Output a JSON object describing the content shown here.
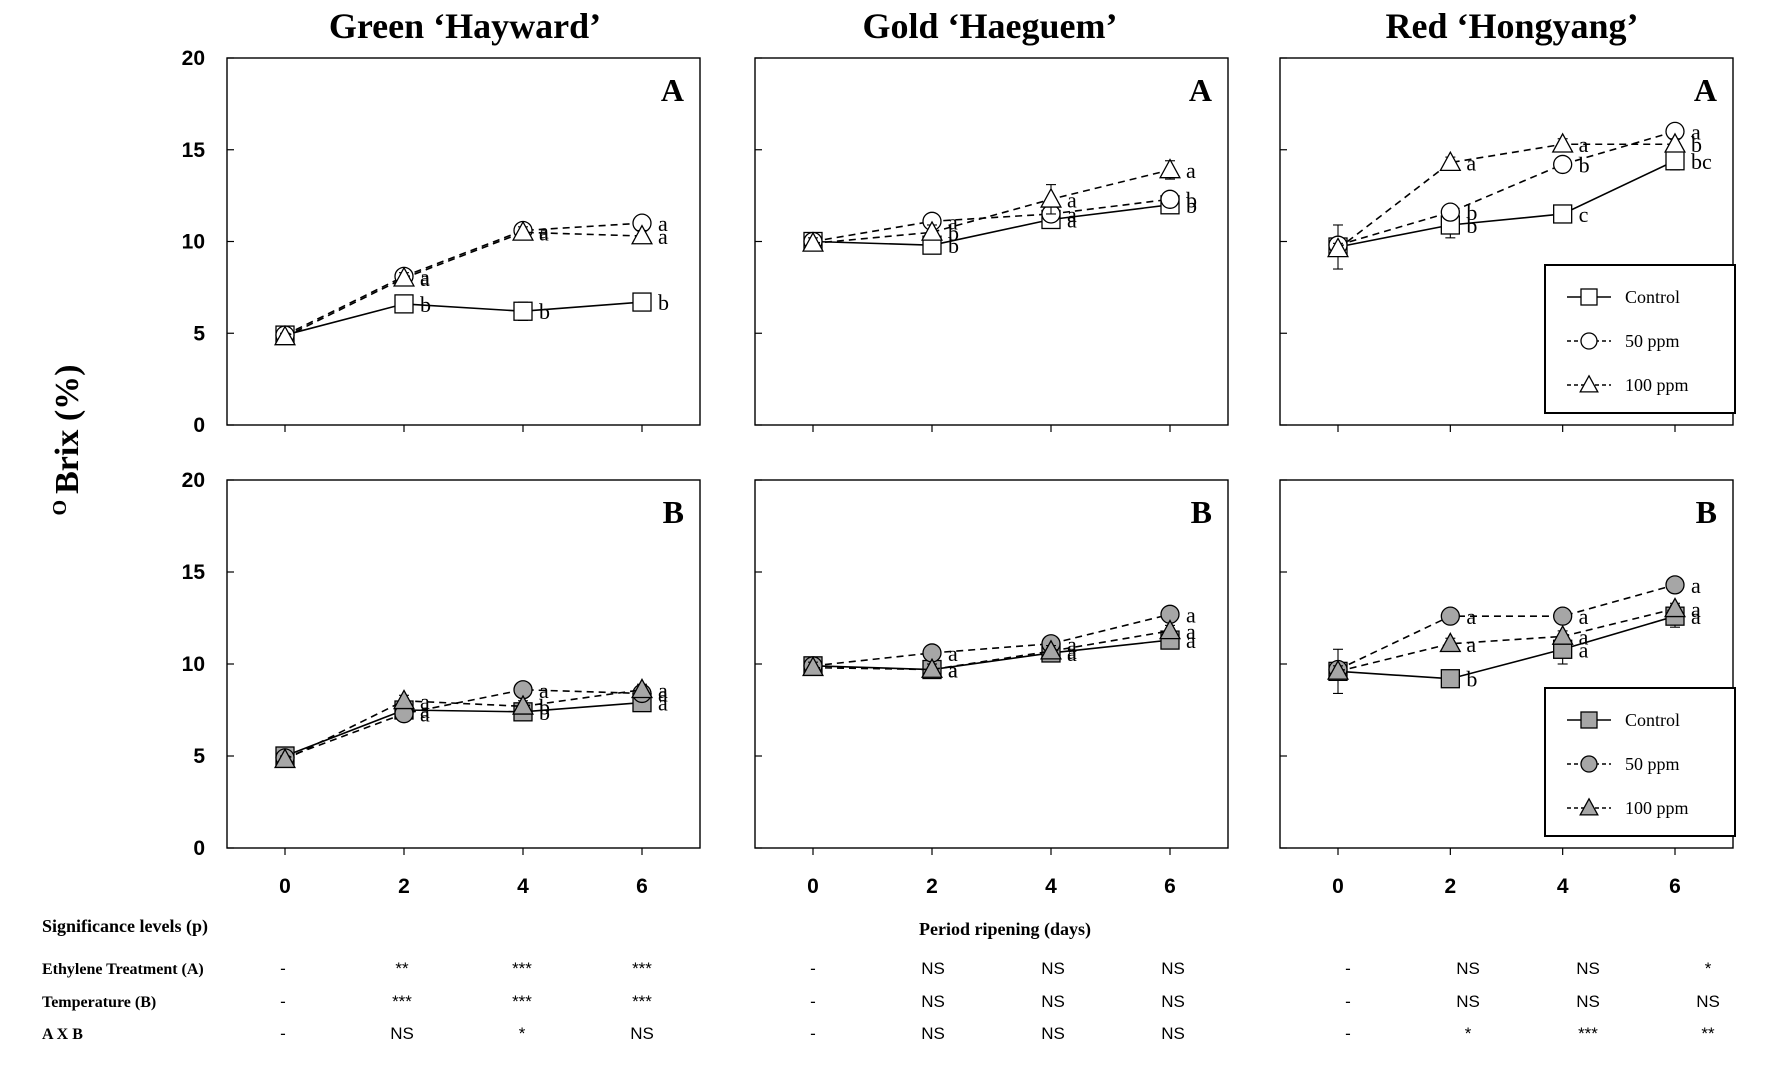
{
  "figure": {
    "ylabel_super": "O",
    "ylabel": "Brix (%)",
    "xlabel": "Period ripening (days)",
    "columns": [
      "Green ‘Hayward’",
      "Gold ‘Haeguem’",
      "Red ‘Hongyang’"
    ],
    "row_tags": [
      "A",
      "B"
    ],
    "legend_labels": [
      "Control",
      "50 ppm",
      "100 ppm"
    ]
  },
  "chart_data": [
    {
      "type": "line",
      "cultivar": "Green ‘Hayward’",
      "panel": "A",
      "fill": "white",
      "x": [
        0,
        2,
        4,
        6
      ],
      "ylim": [
        0,
        20
      ],
      "yticks": [
        0,
        5,
        10,
        15,
        20
      ],
      "series": [
        {
          "name": "Control",
          "marker": "square",
          "values": [
            4.9,
            6.6,
            6.2,
            6.7
          ],
          "err": [
            0.3,
            0.4,
            0.5,
            0.3
          ],
          "letters": [
            "",
            "b",
            "b",
            "b"
          ]
        },
        {
          "name": "50 ppm",
          "marker": "circle",
          "values": [
            4.9,
            8.1,
            10.6,
            11.0
          ],
          "err": [
            0.2,
            0.3,
            0.3,
            0.3
          ],
          "letters": [
            "",
            "a",
            "a",
            "a"
          ]
        },
        {
          "name": "100 ppm",
          "marker": "triangle",
          "values": [
            4.8,
            8.0,
            10.5,
            10.3
          ],
          "err": [
            0.2,
            0.3,
            0.3,
            0.3
          ],
          "letters": [
            "",
            "a",
            "a",
            "a"
          ]
        }
      ]
    },
    {
      "type": "line",
      "cultivar": "Gold ‘Haeguem’",
      "panel": "A",
      "fill": "white",
      "x": [
        0,
        2,
        4,
        6
      ],
      "ylim": [
        0,
        20
      ],
      "yticks": [
        0,
        5,
        10,
        15,
        20
      ],
      "series": [
        {
          "name": "Control",
          "marker": "square",
          "values": [
            10.0,
            9.8,
            11.2,
            12.0
          ],
          "err": [
            0.3,
            0.3,
            0.3,
            0.3
          ],
          "letters": [
            "",
            "b",
            "a",
            "b"
          ]
        },
        {
          "name": "50 ppm",
          "marker": "circle",
          "values": [
            10.0,
            11.1,
            11.5,
            12.3
          ],
          "err": [
            0.3,
            0.3,
            0.3,
            0.3
          ],
          "letters": [
            "",
            "a",
            "a",
            "b"
          ]
        },
        {
          "name": "100 ppm",
          "marker": "triangle",
          "values": [
            9.9,
            10.5,
            12.3,
            13.9
          ],
          "err": [
            0.3,
            0.4,
            0.8,
            0.5
          ],
          "letters": [
            "",
            "b",
            "a",
            "a"
          ]
        }
      ]
    },
    {
      "type": "line",
      "cultivar": "Red ‘Hongyang’",
      "panel": "A",
      "fill": "white",
      "x": [
        0,
        2,
        4,
        6
      ],
      "ylim": [
        0,
        20
      ],
      "yticks": [
        0,
        5,
        10,
        15,
        20
      ],
      "legend": "lower-right",
      "series": [
        {
          "name": "Control",
          "marker": "square",
          "values": [
            9.7,
            10.9,
            11.5,
            14.4
          ],
          "err": [
            1.2,
            0.7,
            0.3,
            0.5
          ],
          "letters": [
            "",
            "b",
            "c",
            "bc"
          ]
        },
        {
          "name": "50 ppm",
          "marker": "circle",
          "values": [
            9.8,
            11.6,
            14.2,
            16.0
          ],
          "err": [
            0.3,
            0.3,
            0.3,
            0.3
          ],
          "letters": [
            "",
            "b",
            "b",
            "a"
          ]
        },
        {
          "name": "100 ppm",
          "marker": "triangle",
          "values": [
            9.6,
            14.3,
            15.3,
            15.3
          ],
          "err": [
            0.3,
            0.3,
            0.3,
            0.3
          ],
          "letters": [
            "",
            "a",
            "a",
            "b"
          ]
        }
      ]
    },
    {
      "type": "line",
      "cultivar": "Green ‘Hayward’",
      "panel": "B",
      "fill": "gray",
      "x": [
        0,
        2,
        4,
        6
      ],
      "ylim": [
        0,
        20
      ],
      "yticks": [
        0,
        5,
        10,
        15,
        20
      ],
      "series": [
        {
          "name": "Control",
          "marker": "square",
          "values": [
            5.0,
            7.5,
            7.4,
            7.9
          ],
          "err": [
            0.2,
            0.3,
            0.3,
            0.3
          ],
          "letters": [
            "",
            "a",
            "b",
            "a"
          ]
        },
        {
          "name": "50 ppm",
          "marker": "circle",
          "values": [
            4.9,
            7.3,
            8.6,
            8.4
          ],
          "err": [
            0.2,
            0.3,
            0.3,
            0.3
          ],
          "letters": [
            "",
            "a",
            "a",
            "a"
          ]
        },
        {
          "name": "100 ppm",
          "marker": "triangle",
          "values": [
            4.8,
            8.0,
            7.7,
            8.6
          ],
          "err": [
            0.2,
            0.3,
            0.3,
            0.3
          ],
          "letters": [
            "",
            "a",
            "b",
            "a"
          ]
        }
      ]
    },
    {
      "type": "line",
      "cultivar": "Gold ‘Haeguem’",
      "panel": "B",
      "fill": "gray",
      "x": [
        0,
        2,
        4,
        6
      ],
      "ylim": [
        0,
        20
      ],
      "yticks": [
        0,
        5,
        10,
        15,
        20
      ],
      "series": [
        {
          "name": "Control",
          "marker": "square",
          "values": [
            9.9,
            9.7,
            10.6,
            11.3
          ],
          "err": [
            0.3,
            0.3,
            0.3,
            0.3
          ],
          "letters": [
            "",
            "a",
            "a",
            "a"
          ]
        },
        {
          "name": "50 ppm",
          "marker": "circle",
          "values": [
            9.9,
            10.6,
            11.1,
            12.7
          ],
          "err": [
            0.3,
            0.3,
            0.3,
            0.3
          ],
          "letters": [
            "",
            "a",
            "a",
            "a"
          ]
        },
        {
          "name": "100 ppm",
          "marker": "triangle",
          "values": [
            9.8,
            9.7,
            10.7,
            11.8
          ],
          "err": [
            0.3,
            0.3,
            0.3,
            0.3
          ],
          "letters": [
            "",
            "a",
            "a",
            "a"
          ]
        }
      ]
    },
    {
      "type": "line",
      "cultivar": "Red ‘Hongyang’",
      "panel": "B",
      "fill": "gray",
      "x": [
        0,
        2,
        4,
        6
      ],
      "ylim": [
        0,
        20
      ],
      "yticks": [
        0,
        5,
        10,
        15,
        20
      ],
      "legend": "lower-right",
      "series": [
        {
          "name": "Control",
          "marker": "square",
          "values": [
            9.6,
            9.2,
            10.8,
            12.6
          ],
          "err": [
            1.2,
            0.3,
            0.8,
            0.6
          ],
          "letters": [
            "",
            "b",
            "a",
            "a"
          ]
        },
        {
          "name": "50 ppm",
          "marker": "circle",
          "values": [
            9.7,
            12.6,
            12.6,
            14.3
          ],
          "err": [
            0.3,
            0.3,
            0.3,
            0.3
          ],
          "letters": [
            "",
            "a",
            "a",
            "a"
          ]
        },
        {
          "name": "100 ppm",
          "marker": "triangle",
          "values": [
            9.6,
            11.1,
            11.5,
            13.0
          ],
          "err": [
            0.3,
            0.3,
            0.3,
            0.3
          ],
          "letters": [
            "",
            "a",
            "a",
            "a"
          ]
        }
      ]
    }
  ],
  "significance": {
    "title": "Significance levels (p)",
    "rows": [
      {
        "label": "Ethylene Treatment (A)",
        "values": [
          [
            "-",
            "**",
            "***",
            "***"
          ],
          [
            "-",
            "NS",
            "NS",
            "NS"
          ],
          [
            "-",
            "NS",
            "NS",
            "*"
          ]
        ]
      },
      {
        "label": "Temperature (B)",
        "values": [
          [
            "-",
            "***",
            "***",
            "***"
          ],
          [
            "-",
            "NS",
            "NS",
            "NS"
          ],
          [
            "-",
            "NS",
            "NS",
            "NS"
          ]
        ]
      },
      {
        "label": "A X B",
        "values": [
          [
            "-",
            "NS",
            "*",
            "NS"
          ],
          [
            "-",
            "NS",
            "NS",
            "NS"
          ],
          [
            "-",
            "*",
            "***",
            "**"
          ]
        ]
      }
    ]
  }
}
